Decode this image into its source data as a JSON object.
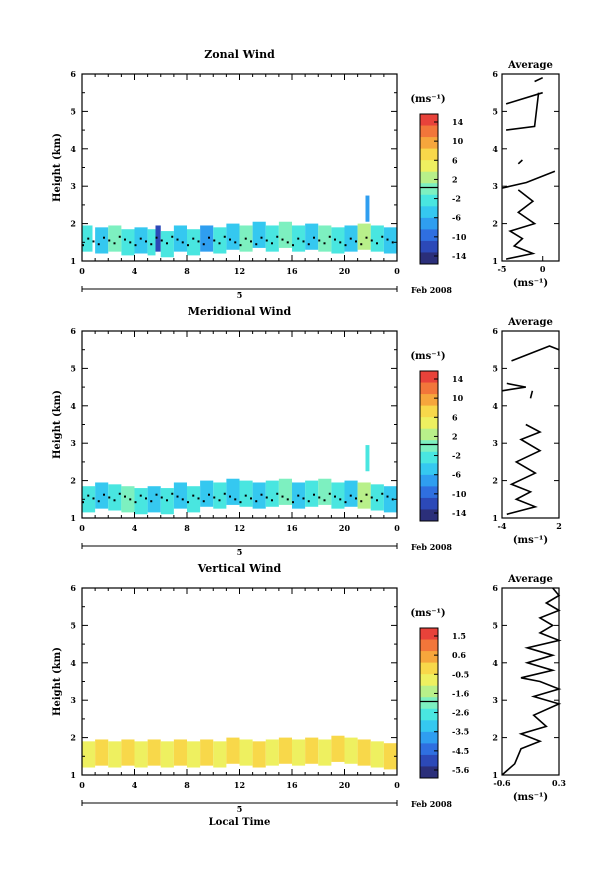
{
  "colors": {
    "palette": [
      "#2b2f7a",
      "#2c49b8",
      "#2f6fe0",
      "#2f9ef0",
      "#35c8f0",
      "#49e6e0",
      "#7df0c0",
      "#b8f08a",
      "#eef060",
      "#f8d84a",
      "#f6a63c",
      "#f2763a",
      "#e8423a"
    ]
  },
  "panels": [
    {
      "title": "Zonal Wind",
      "ylabel": "Height (km)",
      "y_ticks": [
        "1",
        "2",
        "3",
        "4",
        "5",
        "6"
      ],
      "x_ticks": [
        "0",
        "4",
        "8",
        "12",
        "16",
        "20",
        "0"
      ],
      "date_tick": "5",
      "date_label": "Feb 2008",
      "xlabel": "",
      "colorbar_units": "(ms⁻¹)",
      "colorbar_ticks": [
        "14",
        "10",
        "6",
        "2",
        "-2",
        "-6",
        "-10",
        "-14"
      ],
      "avg_title": "Average",
      "avg_y_ticks": [
        "1",
        "2",
        "3",
        "4",
        "5",
        "6"
      ],
      "avg_x_ticks": [
        "-5",
        "0"
      ],
      "avg_xlabel": "(ms⁻¹)"
    },
    {
      "title": "Meridional Wind",
      "ylabel": "Height (km)",
      "y_ticks": [
        "1",
        "2",
        "3",
        "4",
        "5",
        "6"
      ],
      "x_ticks": [
        "0",
        "4",
        "8",
        "12",
        "16",
        "20",
        "0"
      ],
      "date_tick": "5",
      "date_label": "Feb 2008",
      "xlabel": "",
      "colorbar_units": "(ms⁻¹)",
      "colorbar_ticks": [
        "14",
        "10",
        "6",
        "2",
        "-2",
        "-6",
        "-10",
        "-14"
      ],
      "avg_title": "Average",
      "avg_y_ticks": [
        "1",
        "2",
        "3",
        "4",
        "5",
        "6"
      ],
      "avg_x_ticks": [
        "-4",
        "2"
      ],
      "avg_xlabel": "(ms⁻¹)"
    },
    {
      "title": "Vertical Wind",
      "ylabel": "Height (km)",
      "y_ticks": [
        "1",
        "2",
        "3",
        "4",
        "5",
        "6"
      ],
      "x_ticks": [
        "0",
        "4",
        "8",
        "12",
        "16",
        "20",
        "0"
      ],
      "date_tick": "5",
      "date_label": "Feb 2008",
      "xlabel": "Local Time",
      "colorbar_units": "(ms⁻¹)",
      "colorbar_ticks": [
        "1.5",
        "0.6",
        "-0.5",
        "-1.6",
        "-2.6",
        "-3.5",
        "-4.5",
        "-5.6"
      ],
      "avg_title": "Average",
      "avg_y_ticks": [
        "1",
        "2",
        "3",
        "4",
        "5",
        "6"
      ],
      "avg_x_ticks": [
        "-0.6",
        "0.3"
      ],
      "avg_xlabel": "(ms⁻¹)"
    }
  ],
  "chart_data": [
    {
      "type": "heatmap",
      "title": "Zonal Wind",
      "xlabel": "",
      "ylabel": "Height (km)",
      "xlim": [
        0,
        24
      ],
      "ylim": [
        1,
        6
      ],
      "colorbar_range": [
        -14,
        14
      ],
      "cells": [
        [
          0.0,
          1.6,
          0.8,
          "#49e6e0"
        ],
        [
          1.0,
          1.55,
          1.0,
          "#35c8f0"
        ],
        [
          2.0,
          1.6,
          1.0,
          "#7df0c0"
        ],
        [
          3.0,
          1.5,
          1.0,
          "#49e6e0"
        ],
        [
          4.0,
          1.55,
          1.0,
          "#35c8f0"
        ],
        [
          5.0,
          1.5,
          0.6,
          "#49e6e0"
        ],
        [
          5.6,
          1.6,
          0.4,
          "#2c49b8"
        ],
        [
          6.0,
          1.45,
          1.0,
          "#49e6e0"
        ],
        [
          7.0,
          1.6,
          1.0,
          "#35c8f0"
        ],
        [
          8.0,
          1.5,
          1.0,
          "#49e6e0"
        ],
        [
          9.0,
          1.6,
          1.0,
          "#2f9ef0"
        ],
        [
          10.0,
          1.55,
          1.0,
          "#49e6e0"
        ],
        [
          11.0,
          1.65,
          1.0,
          "#35c8f0"
        ],
        [
          12.0,
          1.6,
          1.0,
          "#7df0c0"
        ],
        [
          13.0,
          1.7,
          1.0,
          "#35c8f0"
        ],
        [
          14.0,
          1.6,
          1.0,
          "#49e6e0"
        ],
        [
          15.0,
          1.7,
          1.0,
          "#7df0c0"
        ],
        [
          16.0,
          1.6,
          1.0,
          "#49e6e0"
        ],
        [
          17.0,
          1.65,
          1.0,
          "#35c8f0"
        ],
        [
          18.0,
          1.6,
          1.0,
          "#7df0c0"
        ],
        [
          19.0,
          1.55,
          1.0,
          "#49e6e0"
        ],
        [
          20.0,
          1.6,
          1.0,
          "#35c8f0"
        ],
        [
          21.0,
          1.65,
          1.0,
          "#b8f08a"
        ],
        [
          21.6,
          2.4,
          0.3,
          "#2f9ef0"
        ],
        [
          22.0,
          1.6,
          1.0,
          "#49e6e0"
        ],
        [
          23.0,
          1.55,
          1.0,
          "#35c8f0"
        ]
      ],
      "average_profile": {
        "xlim": [
          -5,
          2
        ],
        "segments": [
          [
            [
              -4.5,
              1.05
            ],
            [
              -1.2,
              1.2
            ],
            [
              -3.5,
              1.4
            ],
            [
              -2.5,
              1.6
            ],
            [
              -4,
              1.8
            ],
            [
              -1,
              2.0
            ],
            [
              -3,
              2.3
            ],
            [
              -1.2,
              2.6
            ],
            [
              -3,
              2.9
            ]
          ],
          [
            [
              -5,
              2.95
            ],
            [
              -2,
              3.1
            ],
            [
              1.5,
              3.4
            ]
          ],
          [
            [
              -3,
              3.6
            ],
            [
              -2.5,
              3.7
            ]
          ],
          [
            [
              -4.5,
              4.5
            ],
            [
              -1,
              4.6
            ],
            [
              -0.5,
              5.5
            ]
          ],
          [
            [
              -4.5,
              5.2
            ],
            [
              0,
              5.5
            ]
          ],
          [
            [
              -1,
              5.8
            ],
            [
              0,
              5.9
            ]
          ]
        ]
      }
    },
    {
      "type": "heatmap",
      "title": "Meridional Wind",
      "xlabel": "",
      "ylabel": "Height (km)",
      "xlim": [
        0,
        24
      ],
      "ylim": [
        1,
        6
      ],
      "colorbar_range": [
        -14,
        14
      ],
      "cells": [
        [
          0.0,
          1.5,
          1.0,
          "#49e6e0"
        ],
        [
          1.0,
          1.6,
          1.0,
          "#35c8f0"
        ],
        [
          2.0,
          1.55,
          1.0,
          "#49e6e0"
        ],
        [
          3.0,
          1.5,
          1.0,
          "#7df0c0"
        ],
        [
          4.0,
          1.45,
          1.0,
          "#49e6e0"
        ],
        [
          5.0,
          1.5,
          1.0,
          "#35c8f0"
        ],
        [
          6.0,
          1.45,
          1.0,
          "#49e6e0"
        ],
        [
          7.0,
          1.6,
          1.0,
          "#35c8f0"
        ],
        [
          8.0,
          1.5,
          1.0,
          "#49e6e0"
        ],
        [
          9.0,
          1.65,
          1.0,
          "#35c8f0"
        ],
        [
          10.0,
          1.6,
          1.0,
          "#49e6e0"
        ],
        [
          11.0,
          1.7,
          1.0,
          "#35c8f0"
        ],
        [
          12.0,
          1.65,
          1.0,
          "#49e6e0"
        ],
        [
          13.0,
          1.6,
          1.0,
          "#35c8f0"
        ],
        [
          14.0,
          1.65,
          1.0,
          "#49e6e0"
        ],
        [
          15.0,
          1.7,
          1.0,
          "#7df0c0"
        ],
        [
          16.0,
          1.6,
          1.0,
          "#35c8f0"
        ],
        [
          17.0,
          1.65,
          1.0,
          "#49e6e0"
        ],
        [
          18.0,
          1.7,
          1.0,
          "#7df0c0"
        ],
        [
          19.0,
          1.6,
          1.0,
          "#49e6e0"
        ],
        [
          20.0,
          1.65,
          1.0,
          "#35c8f0"
        ],
        [
          21.0,
          1.6,
          1.0,
          "#b8f08a"
        ],
        [
          21.6,
          2.6,
          0.3,
          "#49e6e0"
        ],
        [
          22.0,
          1.55,
          1.0,
          "#49e6e0"
        ],
        [
          23.0,
          1.5,
          1.0,
          "#35c8f0"
        ]
      ],
      "average_profile": {
        "xlim": [
          -4,
          2
        ],
        "segments": [
          [
            [
              -3.5,
              1.1
            ],
            [
              -0.5,
              1.3
            ],
            [
              -2.5,
              1.5
            ],
            [
              -1,
              1.7
            ],
            [
              -3,
              1.9
            ],
            [
              -0.5,
              2.2
            ],
            [
              -2.5,
              2.5
            ],
            [
              0,
              2.8
            ],
            [
              -2,
              3.1
            ],
            [
              0,
              3.3
            ],
            [
              -1.5,
              3.5
            ]
          ],
          [
            [
              -1,
              4.2
            ],
            [
              -0.8,
              4.4
            ]
          ],
          [
            [
              -4,
              4.4
            ],
            [
              -1.5,
              4.5
            ],
            [
              -3.5,
              4.6
            ]
          ],
          [
            [
              -3,
              5.2
            ],
            [
              1,
              5.6
            ],
            [
              2,
              5.5
            ]
          ]
        ]
      }
    },
    {
      "type": "heatmap",
      "title": "Vertical Wind",
      "xlabel": "Local Time",
      "ylabel": "Height (km)",
      "xlim": [
        0,
        24
      ],
      "ylim": [
        1,
        6
      ],
      "colorbar_range": [
        -5.6,
        1.5
      ],
      "cells": [
        [
          0.0,
          1.55,
          1.0,
          "#eef060"
        ],
        [
          1.0,
          1.6,
          1.0,
          "#f8d84a"
        ],
        [
          2.0,
          1.55,
          1.0,
          "#eef060"
        ],
        [
          3.0,
          1.6,
          1.0,
          "#f8d84a"
        ],
        [
          4.0,
          1.55,
          1.0,
          "#eef060"
        ],
        [
          5.0,
          1.6,
          1.0,
          "#f8d84a"
        ],
        [
          6.0,
          1.55,
          1.0,
          "#eef060"
        ],
        [
          7.0,
          1.6,
          1.0,
          "#f8d84a"
        ],
        [
          8.0,
          1.55,
          1.0,
          "#eef060"
        ],
        [
          9.0,
          1.6,
          1.0,
          "#f8d84a"
        ],
        [
          10.0,
          1.55,
          1.0,
          "#eef060"
        ],
        [
          11.0,
          1.65,
          1.0,
          "#f8d84a"
        ],
        [
          12.0,
          1.6,
          1.0,
          "#eef060"
        ],
        [
          13.0,
          1.55,
          1.0,
          "#f8d84a"
        ],
        [
          14.0,
          1.6,
          1.0,
          "#eef060"
        ],
        [
          15.0,
          1.65,
          1.0,
          "#f8d84a"
        ],
        [
          16.0,
          1.6,
          1.0,
          "#eef060"
        ],
        [
          17.0,
          1.65,
          1.0,
          "#f8d84a"
        ],
        [
          18.0,
          1.6,
          1.0,
          "#eef060"
        ],
        [
          19.0,
          1.7,
          1.0,
          "#f8d84a"
        ],
        [
          20.0,
          1.65,
          1.0,
          "#eef060"
        ],
        [
          21.0,
          1.6,
          1.0,
          "#f8d84a"
        ],
        [
          22.0,
          1.55,
          1.0,
          "#eef060"
        ],
        [
          23.0,
          1.5,
          1.0,
          "#f8d84a"
        ]
      ],
      "average_profile": {
        "xlim": [
          -0.6,
          0.3
        ],
        "segments": [
          [
            [
              -0.6,
              1.0
            ],
            [
              -0.4,
              1.3
            ],
            [
              -0.3,
              1.7
            ],
            [
              0.0,
              1.9
            ],
            [
              -0.3,
              2.1
            ],
            [
              0.1,
              2.3
            ],
            [
              -0.1,
              2.6
            ],
            [
              0.3,
              2.9
            ],
            [
              -0.1,
              3.1
            ],
            [
              0.3,
              3.3
            ],
            [
              0.0,
              3.5
            ],
            [
              -0.3,
              3.6
            ],
            [
              0.2,
              3.8
            ],
            [
              -0.2,
              4.0
            ],
            [
              0.2,
              4.2
            ],
            [
              -0.2,
              4.4
            ],
            [
              0.3,
              4.6
            ],
            [
              0.0,
              4.8
            ],
            [
              0.2,
              5.0
            ],
            [
              0.0,
              5.2
            ],
            [
              0.3,
              5.4
            ],
            [
              0.1,
              5.6
            ],
            [
              0.3,
              5.8
            ],
            [
              0.2,
              6.0
            ]
          ]
        ]
      }
    }
  ]
}
